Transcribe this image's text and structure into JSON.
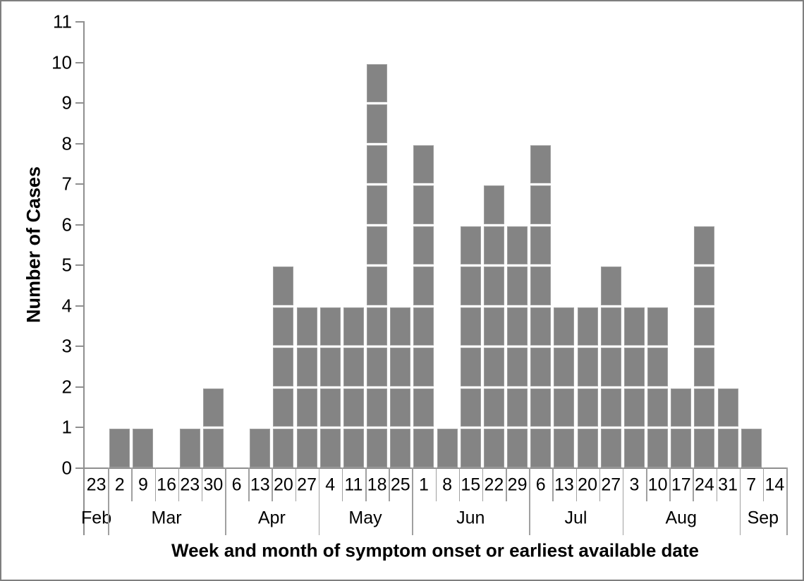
{
  "chart_data": {
    "type": "bar",
    "subtype": "epidemic-curve-unit-squares",
    "title": "",
    "xlabel": "Week and month of symptom onset or earliest available date",
    "ylabel": "Number of Cases",
    "ylim": [
      0,
      11
    ],
    "yticks": [
      0,
      1,
      2,
      3,
      4,
      5,
      6,
      7,
      8,
      9,
      10,
      11
    ],
    "grid": false,
    "legend": false,
    "one_square_equals_one_case": true,
    "bar_fill": "#848484",
    "bar_border": "#9e9e9e",
    "axis_line_color": "#8f8f8f",
    "frame_border_color": "#7f7f7f",
    "text_color": "#000000",
    "months": [
      {
        "name": "Feb",
        "weeks": [
          "23"
        ],
        "values": [
          0
        ]
      },
      {
        "name": "Mar",
        "weeks": [
          "2",
          "9",
          "16",
          "23",
          "30"
        ],
        "values": [
          1,
          1,
          0,
          1,
          2
        ]
      },
      {
        "name": "Apr",
        "weeks": [
          "6",
          "13",
          "20",
          "27"
        ],
        "values": [
          0,
          1,
          5,
          4
        ]
      },
      {
        "name": "May",
        "weeks": [
          "4",
          "11",
          "18",
          "25"
        ],
        "values": [
          4,
          4,
          10,
          4
        ]
      },
      {
        "name": "Jun",
        "weeks": [
          "1",
          "8",
          "15",
          "22",
          "29"
        ],
        "values": [
          8,
          1,
          6,
          7,
          6
        ]
      },
      {
        "name": "Jul",
        "weeks": [
          "6",
          "13",
          "20",
          "27"
        ],
        "values": [
          8,
          4,
          4,
          5
        ]
      },
      {
        "name": "Aug",
        "weeks": [
          "3",
          "10",
          "17",
          "24",
          "31"
        ],
        "values": [
          4,
          4,
          2,
          6,
          2
        ]
      },
      {
        "name": "Sep",
        "weeks": [
          "7",
          "14"
        ],
        "values": [
          1,
          0
        ]
      }
    ],
    "total_cases": 105
  }
}
